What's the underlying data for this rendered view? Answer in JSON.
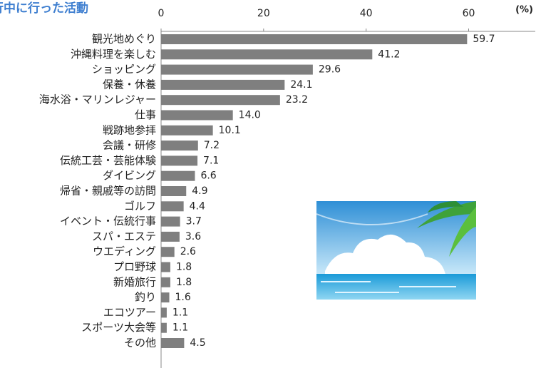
{
  "chart_data": {
    "type": "barh",
    "title": "行中に行った活動",
    "unit": "(%)",
    "categories": [
      "観光地めぐり",
      "沖縄料理を楽しむ",
      "ショッピング",
      "保養・休養",
      "海水浴・マリンレジャー",
      "仕事",
      "戦跡地参拝",
      "会議・研修",
      "伝統工芸・芸能体験",
      "ダイビング",
      "帰省・親戚等の訪問",
      "ゴルフ",
      "イベント・伝統行事",
      "スパ・エステ",
      "ウエディング",
      "プロ野球",
      "新婚旅行",
      "釣り",
      "エコツアー",
      "スポーツ大会等",
      "その他"
    ],
    "values": [
      59.7,
      41.2,
      29.6,
      24.1,
      23.2,
      14.0,
      10.1,
      7.2,
      7.1,
      6.6,
      4.9,
      4.4,
      3.7,
      3.6,
      2.6,
      1.8,
      1.8,
      1.6,
      1.1,
      1.1,
      4.5
    ],
    "value_labels": [
      "59.7",
      "41.2",
      "29.6",
      "24.1",
      "23.2",
      "14.0",
      "10.1",
      "7.2",
      "7.1",
      "6.6",
      "4.9",
      "4.4",
      "3.7",
      "3.6",
      "2.6",
      "1.8",
      "1.8",
      "1.6",
      "1.1",
      "1.1",
      "4.5"
    ],
    "color": "#7f7f7f",
    "xlim": [
      0,
      73
    ],
    "xticks": [
      0,
      20,
      40,
      60
    ]
  }
}
